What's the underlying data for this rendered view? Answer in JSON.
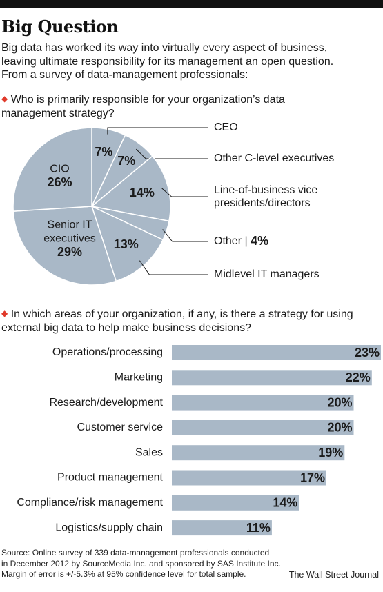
{
  "title": "Big Question",
  "intro": [
    "Big data has worked its way into virtually every aspect of business,",
    "leaving ultimate responsibility for its management an open question.",
    "From a survey of data-management professionals:"
  ],
  "q1": [
    "Who is primarily responsible for your organization’s data",
    "management strategy?"
  ],
  "q2": [
    "In which areas of your organization, if any, is there a strategy for using",
    "external big data to help make business decisions?"
  ],
  "source": [
    "Source: Online survey of 339 data-management professionals conducted",
    "in December 2012 by SourceMedia Inc. and sponsored by SAS Institute Inc.",
    "Margin of error is +/-5.3% at 95% confidence level for total sample."
  ],
  "credit": "The Wall Street Journal",
  "colors": {
    "fill": "#a9b8c7",
    "accent": "#e03a2b",
    "text": "#1a1a1a"
  },
  "chart_data": [
    {
      "type": "pie",
      "unit": "%",
      "slices": [
        {
          "label": "CEO",
          "value": 7
        },
        {
          "label": "Other C-level executives",
          "value": 7
        },
        {
          "label": "Line-of-business vice presidents/directors",
          "value": 14
        },
        {
          "label": "Other",
          "value": 4
        },
        {
          "label": "Midlevel IT managers",
          "value": 13
        },
        {
          "label": "Senior IT executives",
          "value": 29
        },
        {
          "label": "CIO",
          "value": 26
        }
      ]
    },
    {
      "type": "bar",
      "orientation": "horizontal",
      "unit": "%",
      "categories": [
        "Operations/processing",
        "Marketing",
        "Research/development",
        "Customer service",
        "Sales",
        "Product management",
        "Compliance/risk management",
        "Logistics/supply chain"
      ],
      "values": [
        23,
        22,
        20,
        20,
        19,
        17,
        14,
        11
      ]
    }
  ]
}
